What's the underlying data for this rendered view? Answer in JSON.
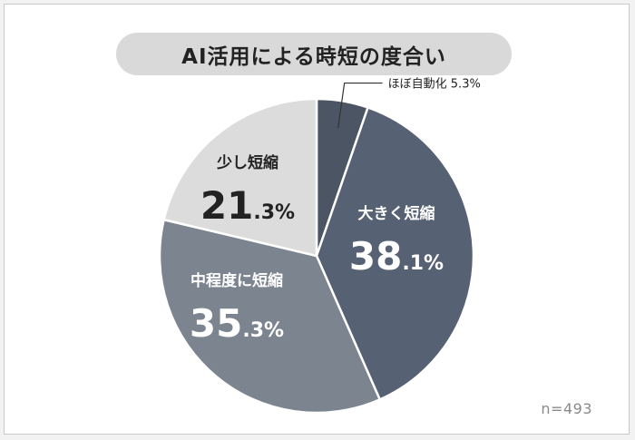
{
  "chart_data": {
    "type": "pie",
    "title": "AI活用による時短の度合い",
    "note": "n=493",
    "slices": [
      {
        "label": "ほぼ自動化",
        "value": 5.3,
        "int": "5",
        "dec": ".3%",
        "color": "#4b5563"
      },
      {
        "label": "大きく短縮",
        "value": 38.1,
        "int": "38",
        "dec": ".1%",
        "color": "#566173"
      },
      {
        "label": "中程度に短縮",
        "value": 35.3,
        "int": "35",
        "dec": ".3%",
        "color": "#7c848f"
      },
      {
        "label": "少し短縮",
        "value": 21.3,
        "int": "21",
        "dec": ".3%",
        "color": "#dcdcdc"
      }
    ],
    "small_label_text": "ほぼ自動化 5.3%"
  }
}
